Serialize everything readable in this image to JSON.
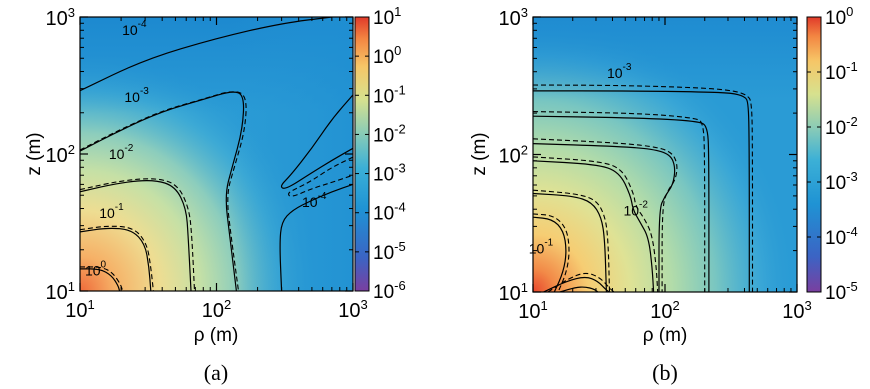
{
  "chart_data": [
    {
      "type": "heatmap",
      "panel_label": "(a)",
      "xlabel": "ρ (m)",
      "ylabel": "z (m)",
      "x_scale": "log",
      "y_scale": "log",
      "xlim": [
        10,
        1000
      ],
      "ylim": [
        10,
        1000
      ],
      "x_ticks": [
        {
          "base": "10",
          "exp": "1",
          "value": 10
        },
        {
          "base": "10",
          "exp": "2",
          "value": 100
        },
        {
          "base": "10",
          "exp": "3",
          "value": 1000
        }
      ],
      "y_ticks": [
        {
          "base": "10",
          "exp": "1",
          "value": 10
        },
        {
          "base": "10",
          "exp": "2",
          "value": 100
        },
        {
          "base": "10",
          "exp": "3",
          "value": 1000
        }
      ],
      "colorbar": {
        "scale": "log",
        "range": [
          1e-06,
          10
        ],
        "ticks": [
          {
            "base": "10",
            "exp": "1"
          },
          {
            "base": "10",
            "exp": "0"
          },
          {
            "base": "10",
            "exp": "-1"
          },
          {
            "base": "10",
            "exp": "-2"
          },
          {
            "base": "10",
            "exp": "-3"
          },
          {
            "base": "10",
            "exp": "-4"
          },
          {
            "base": "10",
            "exp": "-5"
          },
          {
            "base": "10",
            "exp": "-6"
          }
        ]
      },
      "contour_labels": [
        {
          "base": "10",
          "exp": "-4",
          "rho": 25,
          "z": 740
        },
        {
          "base": "10",
          "exp": "-3",
          "rho": 26,
          "z": 240
        },
        {
          "base": "10",
          "exp": "-2",
          "rho": 20,
          "z": 92
        },
        {
          "base": "10",
          "exp": "-1",
          "rho": 17,
          "z": 34
        },
        {
          "base": "10",
          "exp": "0",
          "rho": 13,
          "z": 13
        },
        {
          "base": "10",
          "exp": "-4",
          "rho": 520,
          "z": 41
        }
      ],
      "contours": [
        {
          "level": "1e-4",
          "style": "solid",
          "points": [
            [
              10,
              290
            ],
            [
              30,
              490
            ],
            [
              100,
              700
            ],
            [
              300,
              900
            ],
            [
              700,
              1000
            ]
          ]
        },
        {
          "level": "1e-3",
          "style": "solid",
          "points": [
            [
              10,
              105
            ],
            [
              20,
              150
            ],
            [
              40,
              205
            ],
            [
              80,
              250
            ],
            [
              130,
              290
            ],
            [
              160,
              270
            ],
            [
              155,
              150
            ],
            [
              130,
              80
            ],
            [
              115,
              50
            ],
            [
              125,
              25
            ],
            [
              140,
              10
            ]
          ]
        },
        {
          "level": "1e-3",
          "style": "dashed",
          "points": [
            [
              10,
              107
            ],
            [
              20,
              152
            ],
            [
              40,
              207
            ],
            [
              80,
              252
            ],
            [
              130,
              292
            ],
            [
              167,
              270
            ],
            [
              162,
              150
            ],
            [
              135,
              80
            ],
            [
              118,
              50
            ],
            [
              128,
              25
            ],
            [
              145,
              10
            ]
          ]
        },
        {
          "level": "1e-4",
          "style": "solid",
          "points": [
            [
              1000,
              270
            ],
            [
              700,
              180
            ],
            [
              500,
              110
            ],
            [
              350,
              70
            ],
            [
              290,
              58
            ],
            [
              320,
              55
            ],
            [
              500,
              73
            ],
            [
              700,
              90
            ],
            [
              1000,
              110
            ]
          ]
        },
        {
          "level": "1e-4",
          "style": "dashed",
          "points": [
            [
              1000,
              95
            ],
            [
              700,
              80
            ],
            [
              500,
              64
            ],
            [
              400,
              57
            ],
            [
              330,
              52
            ],
            [
              350,
              48
            ],
            [
              500,
              56
            ],
            [
              700,
              62
            ],
            [
              1000,
              70
            ]
          ]
        },
        {
          "level": "1e-4",
          "style": "solid",
          "points": [
            [
              1000,
              60
            ],
            [
              700,
              53
            ],
            [
              500,
              46
            ],
            [
              360,
              39
            ],
            [
              300,
              32
            ],
            [
              290,
              22
            ],
            [
              300,
              10
            ]
          ]
        },
        {
          "level": "1e-2",
          "style": "solid",
          "points": [
            [
              10,
              53
            ],
            [
              20,
              62
            ],
            [
              35,
              65
            ],
            [
              50,
              58
            ],
            [
              60,
              40
            ],
            [
              62,
              25
            ],
            [
              65,
              10
            ]
          ]
        },
        {
          "level": "1e-2",
          "style": "dashed",
          "points": [
            [
              10,
              55
            ],
            [
              20,
              64
            ],
            [
              36,
              67
            ],
            [
              52,
              60
            ],
            [
              63,
              40
            ],
            [
              66,
              25
            ],
            [
              69,
              10
            ]
          ]
        },
        {
          "level": "1e-1",
          "style": "solid",
          "points": [
            [
              10,
              27
            ],
            [
              16,
              29
            ],
            [
              24,
              28
            ],
            [
              30,
              22
            ],
            [
              32,
              15
            ],
            [
              33,
              10
            ]
          ]
        },
        {
          "level": "1e-1",
          "style": "dashed",
          "points": [
            [
              10,
              28
            ],
            [
              16,
              30
            ],
            [
              25,
              29
            ],
            [
              31,
              22
            ],
            [
              33,
              15
            ],
            [
              34.5,
              10
            ]
          ]
        },
        {
          "level": "1e0",
          "style": "solid",
          "points": [
            [
              10,
              14.5
            ],
            [
              14,
              14.5
            ],
            [
              17,
              13
            ],
            [
              19,
              11
            ],
            [
              19.5,
              10
            ]
          ]
        },
        {
          "level": "1e0",
          "style": "dashed",
          "points": [
            [
              10,
              15
            ],
            [
              14.5,
              15
            ],
            [
              17.5,
              13.5
            ],
            [
              20,
              11
            ],
            [
              20.5,
              10
            ]
          ]
        }
      ]
    },
    {
      "type": "heatmap",
      "panel_label": "(b)",
      "xlabel": "ρ (m)",
      "ylabel": "z (m)",
      "x_scale": "log",
      "y_scale": "log",
      "xlim": [
        10,
        1000
      ],
      "ylim": [
        10,
        1000
      ],
      "x_ticks": [
        {
          "base": "10",
          "exp": "1",
          "value": 10
        },
        {
          "base": "10",
          "exp": "2",
          "value": 100
        },
        {
          "base": "10",
          "exp": "3",
          "value": 1000
        }
      ],
      "y_ticks": [
        {
          "base": "10",
          "exp": "1",
          "value": 10
        },
        {
          "base": "10",
          "exp": "2",
          "value": 100
        },
        {
          "base": "10",
          "exp": "3",
          "value": 1000
        }
      ],
      "colorbar": {
        "scale": "log",
        "range": [
          1e-05,
          1
        ],
        "ticks": [
          {
            "base": "10",
            "exp": "0"
          },
          {
            "base": "10",
            "exp": "-1"
          },
          {
            "base": "10",
            "exp": "-2"
          },
          {
            "base": "10",
            "exp": "-3"
          },
          {
            "base": "10",
            "exp": "-4"
          },
          {
            "base": "10",
            "exp": "-5"
          }
        ]
      },
      "contour_labels": [
        {
          "base": "10",
          "exp": "-3",
          "rho": 45,
          "z": 360
        },
        {
          "base": "10",
          "exp": "-2",
          "rho": 60,
          "z": 36
        },
        {
          "base": "10",
          "exp": "-1",
          "rho": 11.5,
          "z": 19
        }
      ],
      "contours": [
        {
          "level": "1e-3",
          "style": "solid",
          "points": [
            [
              10,
              290
            ],
            [
              50,
              290
            ],
            [
              200,
              285
            ],
            [
              320,
              280
            ],
            [
              400,
              265
            ],
            [
              430,
              240
            ],
            [
              435,
              100
            ],
            [
              435,
              10
            ]
          ]
        },
        {
          "level": "1e-3",
          "style": "dashed",
          "points": [
            [
              10,
              320
            ],
            [
              50,
              318
            ],
            [
              200,
              305
            ],
            [
              340,
              290
            ],
            [
              420,
              270
            ],
            [
              455,
              240
            ],
            [
              460,
              100
            ],
            [
              460,
              10
            ]
          ]
        },
        {
          "level": "mid-a",
          "style": "solid",
          "points": [
            [
              10,
              190
            ],
            [
              60,
              185
            ],
            [
              180,
              175
            ],
            [
              210,
              160
            ],
            [
              215,
              100
            ],
            [
              215,
              10
            ]
          ]
        },
        {
          "level": "mid-a",
          "style": "dashed",
          "points": [
            [
              10,
              205
            ],
            [
              60,
              200
            ],
            [
              170,
              185
            ],
            [
              195,
              170
            ],
            [
              200,
              100
            ],
            [
              200,
              10
            ]
          ]
        },
        {
          "level": "mid-b",
          "style": "solid",
          "points": [
            [
              10,
              120
            ],
            [
              40,
              115
            ],
            [
              80,
              110
            ],
            [
              110,
              100
            ],
            [
              120,
              80
            ],
            [
              115,
              60
            ],
            [
              100,
              50
            ],
            [
              90,
              40
            ],
            [
              90,
              10
            ]
          ]
        },
        {
          "level": "mid-b",
          "style": "dashed",
          "points": [
            [
              10,
              130
            ],
            [
              40,
              122
            ],
            [
              80,
              115
            ],
            [
              112,
              105
            ],
            [
              125,
              85
            ],
            [
              120,
              65
            ],
            [
              105,
              55
            ],
            [
              95,
              42
            ],
            [
              95,
              10
            ]
          ]
        },
        {
          "level": "1e-2",
          "style": "solid",
          "points": [
            [
              10,
              90
            ],
            [
              30,
              85
            ],
            [
              45,
              75
            ],
            [
              55,
              50
            ],
            [
              57,
              40
            ],
            [
              65,
              32
            ],
            [
              75,
              25
            ],
            [
              80,
              15
            ],
            [
              82,
              10
            ]
          ]
        },
        {
          "level": "1e-2",
          "style": "dashed",
          "points": [
            [
              10,
              96
            ],
            [
              30,
              90
            ],
            [
              47,
              80
            ],
            [
              58,
              52
            ],
            [
              60,
              42
            ],
            [
              70,
              34
            ],
            [
              80,
              26
            ],
            [
              86,
              15
            ],
            [
              88,
              10
            ]
          ]
        },
        {
          "level": "inner-a",
          "style": "solid",
          "points": [
            [
              10,
              52
            ],
            [
              20,
              50
            ],
            [
              28,
              45
            ],
            [
              33,
              35
            ],
            [
              35,
              24
            ],
            [
              36,
              10
            ]
          ]
        },
        {
          "level": "inner-a",
          "style": "dashed",
          "points": [
            [
              10,
              55
            ],
            [
              21,
              52
            ],
            [
              30,
              47
            ],
            [
              35,
              36
            ],
            [
              37,
              25
            ],
            [
              38,
              10
            ]
          ]
        },
        {
          "level": "1e-1",
          "style": "solid",
          "points": [
            [
              10,
              35
            ],
            [
              14,
              34
            ],
            [
              17,
              28
            ],
            [
              18,
              20
            ],
            [
              17,
              14
            ],
            [
              14.5,
              10
            ]
          ]
        },
        {
          "level": "1e-1",
          "style": "dashed",
          "points": [
            [
              10,
              37
            ],
            [
              14.5,
              36
            ],
            [
              18,
              29
            ],
            [
              19,
              20
            ],
            [
              18,
              14
            ],
            [
              15.5,
              10
            ]
          ]
        },
        {
          "level": "bottom-a",
          "style": "solid",
          "points": [
            [
              12,
              10
            ],
            [
              18,
              12
            ],
            [
              25,
              13
            ],
            [
              31,
              12
            ],
            [
              36,
              10.3
            ],
            [
              38,
              10
            ]
          ]
        },
        {
          "level": "bottom-a",
          "style": "dashed",
          "points": [
            [
              13,
              10
            ],
            [
              18.5,
              12.5
            ],
            [
              25,
              14
            ],
            [
              32,
              12.8
            ],
            [
              38,
              10.7
            ],
            [
              41,
              10
            ]
          ]
        },
        {
          "level": "bottom-b",
          "style": "solid",
          "points": [
            [
              16,
              10
            ],
            [
              21,
              10.8
            ],
            [
              25,
              10.9
            ],
            [
              29,
              10.5
            ],
            [
              31,
              10
            ]
          ]
        }
      ]
    }
  ]
}
